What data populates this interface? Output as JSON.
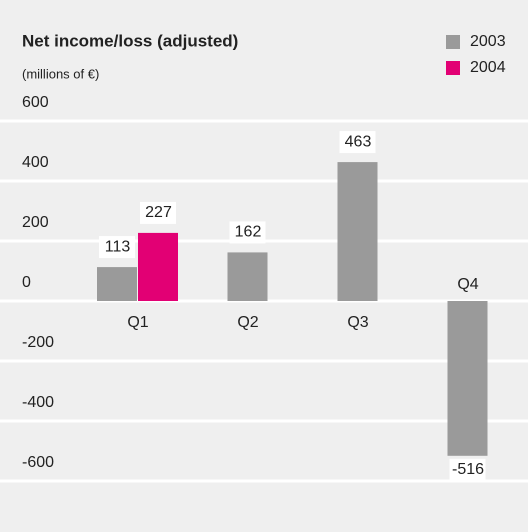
{
  "chart_data": {
    "type": "bar",
    "title": "Net income/loss (adjusted)",
    "subtitle": "(millions of €)",
    "categories": [
      "Q1",
      "Q2",
      "Q3",
      "Q4"
    ],
    "series": [
      {
        "name": "2003",
        "color": "#9a9a9a",
        "values": [
          113,
          162,
          463,
          -516
        ]
      },
      {
        "name": "2004",
        "color": "#e20074",
        "values": [
          227,
          null,
          null,
          null
        ]
      }
    ],
    "ylim": [
      -600,
      600
    ],
    "yticks": [
      -600,
      -400,
      -200,
      0,
      200,
      400,
      600
    ],
    "grid": true,
    "legend": "top-right"
  }
}
